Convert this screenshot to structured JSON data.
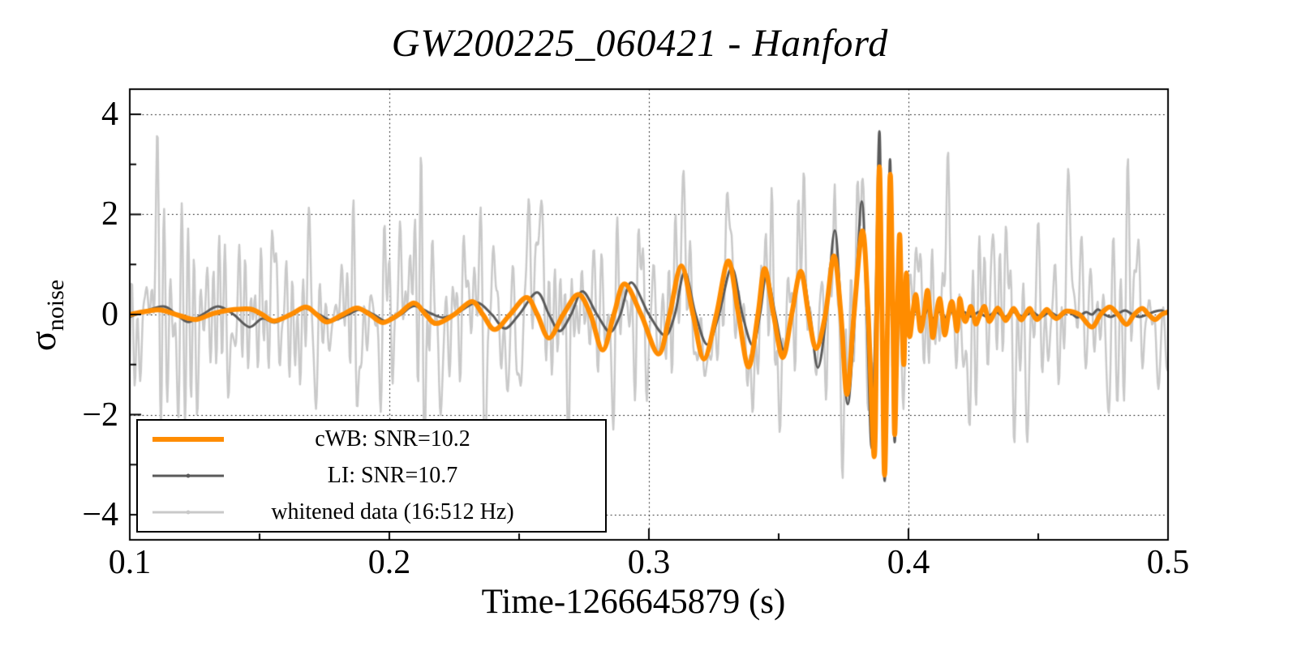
{
  "chart_data": {
    "type": "line",
    "title": "GW200225_060421 - Hanford",
    "xlabel": "Time-1266645879 (s)",
    "ylabel_sigma": "σ",
    "ylabel_subscript": "noise",
    "xlim": [
      0.1,
      0.5
    ],
    "ylim": [
      -4.5,
      4.5
    ],
    "x_major_ticks": [
      0.1,
      0.2,
      0.3,
      0.4,
      0.5
    ],
    "x_major_labels": [
      "0.1",
      "0.2",
      "0.3",
      "0.4",
      "0.5"
    ],
    "x_minor_ticks": [
      0.15,
      0.25,
      0.35,
      0.45
    ],
    "y_major_ticks": [
      -4,
      -2,
      0,
      2,
      4
    ],
    "y_major_labels": [
      "−4",
      "−2",
      "0",
      "2",
      "4"
    ],
    "y_minor_ticks": [
      -3,
      -1,
      1,
      3
    ],
    "grid": {
      "style": "dotted",
      "color": "#000000",
      "on_major_x": [
        0.2,
        0.3,
        0.4
      ],
      "on_major_y": [
        -4,
        -2,
        0,
        2,
        4
      ]
    },
    "frame_color": "#000000",
    "background_color": "#ffffff",
    "legend": {
      "position": "bottom-left",
      "border_color": "#000000",
      "fill_color": "#ffffff",
      "entries": [
        {
          "label": "cWB: SNR=10.2",
          "color": "#ff8c00",
          "line_width": 6
        },
        {
          "label": "LI: SNR=10.7",
          "color": "#5a5a5a",
          "line_width": 3
        },
        {
          "label": "whitened data (16:512 Hz)",
          "color": "#c9c9c9",
          "line_width": 3
        }
      ]
    },
    "series": [
      {
        "name": "cWB",
        "color": "#ff8c00",
        "width": 6,
        "smooth": true,
        "points": [
          [
            0.1,
            0.0
          ],
          [
            0.106,
            0.06
          ],
          [
            0.112,
            0.09
          ],
          [
            0.119,
            -0.02
          ],
          [
            0.1255,
            -0.1
          ],
          [
            0.132,
            0.02
          ],
          [
            0.1385,
            0.09
          ],
          [
            0.1463,
            0.11
          ],
          [
            0.151,
            0.0
          ],
          [
            0.1556,
            -0.13
          ],
          [
            0.162,
            0.0
          ],
          [
            0.1678,
            0.15
          ],
          [
            0.172,
            0.0
          ],
          [
            0.176,
            -0.15
          ],
          [
            0.182,
            0.0
          ],
          [
            0.1875,
            0.13
          ],
          [
            0.1925,
            0.0
          ],
          [
            0.1975,
            -0.16
          ],
          [
            0.2035,
            0.0
          ],
          [
            0.2094,
            0.23
          ],
          [
            0.214,
            0.0
          ],
          [
            0.2181,
            -0.18
          ],
          [
            0.225,
            0.0
          ],
          [
            0.2318,
            0.26
          ],
          [
            0.236,
            0.0
          ],
          [
            0.2406,
            -0.3
          ],
          [
            0.2465,
            0.0
          ],
          [
            0.2528,
            0.34
          ],
          [
            0.257,
            0.0
          ],
          [
            0.2615,
            -0.47
          ],
          [
            0.267,
            0.0
          ],
          [
            0.2728,
            0.4
          ],
          [
            0.2775,
            0.0
          ],
          [
            0.2822,
            -0.71
          ],
          [
            0.2865,
            0.0
          ],
          [
            0.2906,
            0.61
          ],
          [
            0.297,
            0.0
          ],
          [
            0.3037,
            -0.79
          ],
          [
            0.308,
            0.0
          ],
          [
            0.3125,
            0.97
          ],
          [
            0.317,
            0.0
          ],
          [
            0.3212,
            -0.89
          ],
          [
            0.326,
            0.0
          ],
          [
            0.3306,
            1.07
          ],
          [
            0.3345,
            0.0
          ],
          [
            0.3384,
            -1.05
          ],
          [
            0.342,
            0.0
          ],
          [
            0.3446,
            0.92
          ],
          [
            0.348,
            0.0
          ],
          [
            0.3516,
            -0.86
          ],
          [
            0.355,
            0.0
          ],
          [
            0.3585,
            0.86
          ],
          [
            0.3615,
            0.0
          ],
          [
            0.3644,
            -0.68
          ],
          [
            0.368,
            0.0
          ],
          [
            0.3713,
            1.17
          ],
          [
            0.374,
            0.0
          ],
          [
            0.3763,
            -1.6
          ],
          [
            0.379,
            0.0
          ],
          [
            0.3823,
            1.67
          ],
          [
            0.3845,
            0.0
          ],
          [
            0.3868,
            -2.84
          ],
          [
            0.3878,
            0.0
          ],
          [
            0.3888,
            2.95
          ],
          [
            0.3898,
            0.0
          ],
          [
            0.3908,
            -3.21
          ],
          [
            0.392,
            0.0
          ],
          [
            0.393,
            2.8
          ],
          [
            0.394,
            0.0
          ],
          [
            0.3947,
            -2.4
          ],
          [
            0.3957,
            0.0
          ],
          [
            0.3966,
            1.6
          ],
          [
            0.3974,
            0.0
          ],
          [
            0.3982,
            -1.0
          ],
          [
            0.3987,
            0.0
          ],
          [
            0.3992,
            0.83
          ],
          [
            0.3999,
            0.0
          ],
          [
            0.4005,
            -0.44
          ],
          [
            0.4016,
            0.0
          ],
          [
            0.4028,
            0.4
          ],
          [
            0.4038,
            0.0
          ],
          [
            0.4047,
            -0.33
          ],
          [
            0.406,
            0.0
          ],
          [
            0.4073,
            0.48
          ],
          [
            0.4084,
            0.0
          ],
          [
            0.4094,
            -0.46
          ],
          [
            0.4107,
            0.0
          ],
          [
            0.412,
            0.32
          ],
          [
            0.413,
            0.0
          ],
          [
            0.414,
            -0.41
          ],
          [
            0.4154,
            0.0
          ],
          [
            0.4167,
            0.26
          ],
          [
            0.4177,
            0.0
          ],
          [
            0.4187,
            -0.33
          ],
          [
            0.4193,
            0.0
          ],
          [
            0.4198,
            0.32
          ],
          [
            0.4209,
            0.0
          ],
          [
            0.4219,
            -0.14
          ],
          [
            0.423,
            0.0
          ],
          [
            0.424,
            0.16
          ],
          [
            0.425,
            0.0
          ],
          [
            0.426,
            -0.19
          ],
          [
            0.4276,
            0.0
          ],
          [
            0.4292,
            0.16
          ],
          [
            0.4302,
            0.0
          ],
          [
            0.4312,
            -0.14
          ],
          [
            0.4328,
            0.0
          ],
          [
            0.4344,
            0.13
          ],
          [
            0.436,
            0.0
          ],
          [
            0.4375,
            -0.12
          ],
          [
            0.439,
            0.0
          ],
          [
            0.4405,
            0.12
          ],
          [
            0.442,
            0.0
          ],
          [
            0.4435,
            -0.11
          ],
          [
            0.445,
            0.0
          ],
          [
            0.4467,
            0.12
          ],
          [
            0.448,
            0.0
          ],
          [
            0.4495,
            -0.1
          ],
          [
            0.4515,
            0.0
          ],
          [
            0.4533,
            0.1
          ],
          [
            0.455,
            0.0
          ],
          [
            0.457,
            -0.08
          ],
          [
            0.459,
            0.0
          ],
          [
            0.461,
            0.07
          ],
          [
            0.4658,
            0.0
          ],
          [
            0.4706,
            -0.25
          ],
          [
            0.474,
            0.0
          ],
          [
            0.4775,
            0.15
          ],
          [
            0.4807,
            0.0
          ],
          [
            0.484,
            -0.2
          ],
          [
            0.487,
            0.0
          ],
          [
            0.49,
            0.12
          ],
          [
            0.4925,
            0.0
          ],
          [
            0.495,
            -0.1
          ],
          [
            0.4975,
            0.0
          ],
          [
            0.5,
            0.05
          ]
        ]
      },
      {
        "name": "LI",
        "color": "#5a5a5a",
        "width": 3,
        "smooth": true,
        "points": [
          [
            0.1,
            -0.05
          ],
          [
            0.105,
            0.05
          ],
          [
            0.113,
            0.16
          ],
          [
            0.118,
            0.0
          ],
          [
            0.1225,
            -0.15
          ],
          [
            0.128,
            0.0
          ],
          [
            0.134,
            0.16
          ],
          [
            0.14,
            0.0
          ],
          [
            0.146,
            -0.25
          ],
          [
            0.151,
            -0.08
          ],
          [
            0.156,
            -0.16
          ],
          [
            0.1615,
            0.0
          ],
          [
            0.1675,
            0.12
          ],
          [
            0.173,
            0.0
          ],
          [
            0.178,
            -0.12
          ],
          [
            0.184,
            0.0
          ],
          [
            0.189,
            0.1
          ],
          [
            0.194,
            0.0
          ],
          [
            0.199,
            -0.14
          ],
          [
            0.2045,
            0.0
          ],
          [
            0.2095,
            0.17
          ],
          [
            0.216,
            0.02
          ],
          [
            0.221,
            -0.06
          ],
          [
            0.227,
            0.06
          ],
          [
            0.2338,
            0.24
          ],
          [
            0.2395,
            0.0
          ],
          [
            0.2445,
            -0.28
          ],
          [
            0.25,
            0.0
          ],
          [
            0.2569,
            0.44
          ],
          [
            0.2615,
            0.0
          ],
          [
            0.2656,
            -0.33
          ],
          [
            0.27,
            0.0
          ],
          [
            0.2744,
            0.46
          ],
          [
            0.28,
            0.0
          ],
          [
            0.285,
            -0.35
          ],
          [
            0.289,
            0.0
          ],
          [
            0.2932,
            0.64
          ],
          [
            0.3,
            0.0
          ],
          [
            0.3062,
            -0.42
          ],
          [
            0.31,
            0.0
          ],
          [
            0.3138,
            0.85
          ],
          [
            0.318,
            0.0
          ],
          [
            0.3225,
            -0.6
          ],
          [
            0.327,
            0.0
          ],
          [
            0.3319,
            0.94
          ],
          [
            0.336,
            0.0
          ],
          [
            0.34,
            -0.62
          ],
          [
            0.3428,
            0.0
          ],
          [
            0.3453,
            0.79
          ],
          [
            0.3487,
            0.0
          ],
          [
            0.352,
            -0.72
          ],
          [
            0.3553,
            0.0
          ],
          [
            0.3587,
            0.87
          ],
          [
            0.362,
            0.0
          ],
          [
            0.3651,
            -1.06
          ],
          [
            0.3684,
            0.0
          ],
          [
            0.3716,
            1.68
          ],
          [
            0.3741,
            0.0
          ],
          [
            0.3766,
            -1.79
          ],
          [
            0.3793,
            0.0
          ],
          [
            0.382,
            2.26
          ],
          [
            0.384,
            0.0
          ],
          [
            0.3858,
            -2.67
          ],
          [
            0.3873,
            0.0
          ],
          [
            0.3888,
            3.66
          ],
          [
            0.3898,
            0.0
          ],
          [
            0.3908,
            -3.32
          ],
          [
            0.3919,
            0.0
          ],
          [
            0.3929,
            3.1
          ],
          [
            0.3938,
            0.0
          ],
          [
            0.3947,
            -2.55
          ],
          [
            0.3957,
            0.0
          ],
          [
            0.3966,
            1.55
          ],
          [
            0.3973,
            0.0
          ],
          [
            0.398,
            -0.6
          ],
          [
            0.3988,
            0.0
          ],
          [
            0.3995,
            0.25
          ],
          [
            0.4003,
            0.0
          ],
          [
            0.401,
            -0.1
          ],
          [
            0.4019,
            0.0
          ],
          [
            0.4028,
            0.08
          ],
          [
            0.4039,
            0.0
          ],
          [
            0.405,
            -0.06
          ],
          [
            0.4063,
            0.0
          ],
          [
            0.4075,
            0.1
          ],
          [
            0.4085,
            0.0
          ],
          [
            0.4095,
            -0.08
          ],
          [
            0.4108,
            0.0
          ],
          [
            0.412,
            0.06
          ],
          [
            0.413,
            0.0
          ],
          [
            0.414,
            -0.06
          ],
          [
            0.4153,
            0.0
          ],
          [
            0.4165,
            0.05
          ],
          [
            0.4178,
            0.0
          ],
          [
            0.419,
            -0.05
          ],
          [
            0.4203,
            0.0
          ],
          [
            0.4215,
            0.05
          ],
          [
            0.4228,
            0.0
          ],
          [
            0.424,
            -0.04
          ],
          [
            0.4255,
            0.0
          ],
          [
            0.427,
            0.05
          ],
          [
            0.4285,
            0.0
          ],
          [
            0.43,
            -0.04
          ],
          [
            0.4318,
            0.0
          ],
          [
            0.4335,
            0.06
          ],
          [
            0.4353,
            0.0
          ],
          [
            0.437,
            -0.05
          ],
          [
            0.4388,
            0.0
          ],
          [
            0.4405,
            0.05
          ],
          [
            0.4423,
            0.0
          ],
          [
            0.444,
            -0.04
          ],
          [
            0.4458,
            0.0
          ],
          [
            0.4475,
            0.06
          ],
          [
            0.4493,
            0.0
          ],
          [
            0.451,
            -0.05
          ],
          [
            0.4528,
            0.0
          ],
          [
            0.4545,
            0.05
          ],
          [
            0.4563,
            0.0
          ],
          [
            0.458,
            -0.04
          ],
          [
            0.4598,
            0.0
          ],
          [
            0.4615,
            0.05
          ],
          [
            0.4633,
            0.0
          ],
          [
            0.465,
            -0.06
          ],
          [
            0.4668,
            0.0
          ],
          [
            0.4685,
            0.05
          ],
          [
            0.4708,
            0.0
          ],
          [
            0.473,
            0.1
          ],
          [
            0.4755,
            0.0
          ],
          [
            0.478,
            -0.05
          ],
          [
            0.4808,
            0.02
          ],
          [
            0.4835,
            0.08
          ],
          [
            0.4863,
            0.0
          ],
          [
            0.489,
            -0.05
          ],
          [
            0.492,
            0.0
          ],
          [
            0.495,
            0.06
          ],
          [
            0.4975,
            0.08
          ],
          [
            0.5,
            0.02
          ]
        ]
      },
      {
        "name": "whitened_data",
        "color": "#c9c9c9",
        "width": 2.5,
        "smooth": false,
        "synthesis": {
          "kind": "bandlimited_noise_plus_signal",
          "band_hz": [
            16,
            512
          ],
          "rms": 1.03,
          "seed": 20200225,
          "components": 60,
          "n_samples": 1300,
          "add_series": "LI",
          "peak_abs_sigma": 4.3
        }
      }
    ]
  }
}
